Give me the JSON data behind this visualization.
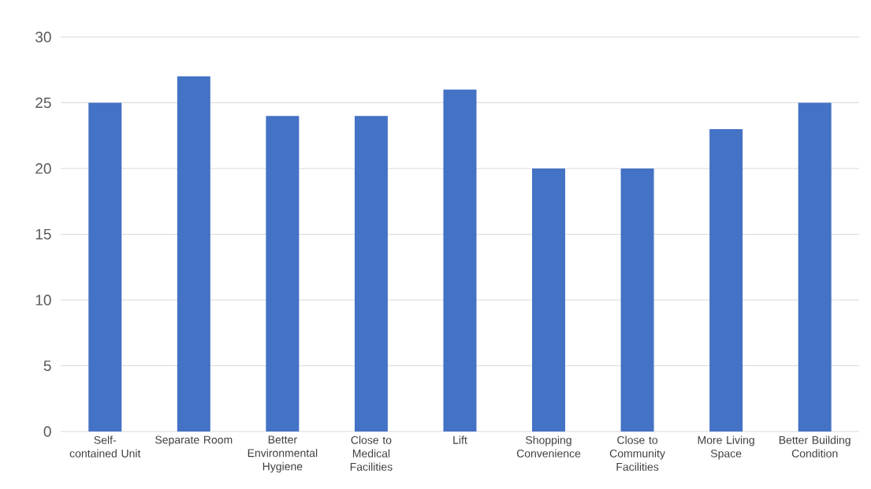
{
  "chart_data": {
    "type": "bar",
    "categories": [
      "Self-contained Unit",
      "Separate Room",
      "Better Environmental Hygiene",
      "Close to Medical Facilities",
      "Lift",
      "Shopping Convenience",
      "Close to Community Facilities",
      "More Living Space",
      "Better Building Condition"
    ],
    "values": [
      25,
      27,
      24,
      24,
      26,
      20,
      20,
      23,
      25
    ],
    "color": "#4472c4",
    "ylim": [
      0,
      30
    ],
    "yticks": [
      0,
      5,
      10,
      15,
      20,
      25,
      30
    ],
    "grid": "y"
  }
}
